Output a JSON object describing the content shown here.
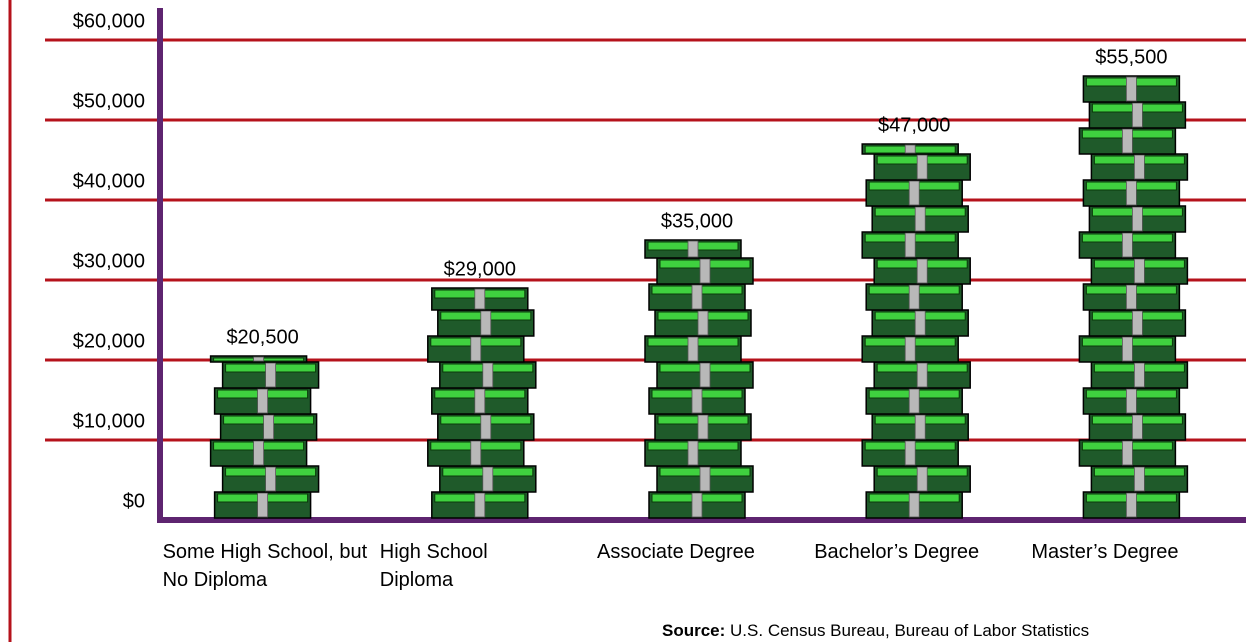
{
  "chart_data": {
    "type": "pictograph-bar",
    "categories": [
      "Some High School, but No Diploma",
      "High School Diploma",
      "Associate Degree",
      "Bachelor’s Degree",
      "Master’s Degree"
    ],
    "values": [
      20500,
      29000,
      35000,
      47000,
      55500
    ],
    "value_labels": [
      "$20,500",
      "$29,000",
      "$35,000",
      "$47,000",
      "$55,500"
    ],
    "ylim": [
      0,
      63000
    ],
    "yticks": [
      {
        "value": 0,
        "label": "$0"
      },
      {
        "value": 10000,
        "label": "$10,000"
      },
      {
        "value": 20000,
        "label": "$20,000"
      },
      {
        "value": 30000,
        "label": "$30,000"
      },
      {
        "value": 40000,
        "label": "$40,000"
      },
      {
        "value": 50000,
        "label": "$50,000"
      },
      {
        "value": 60000,
        "label": "$60,000"
      }
    ],
    "grid": true,
    "grid_color": "#b5121b",
    "axis_color": "#5e2470",
    "color": "#1f5a2a",
    "source_label": "Source:",
    "source": "U.S. Census Bureau, Bureau of Labor Statistics"
  }
}
